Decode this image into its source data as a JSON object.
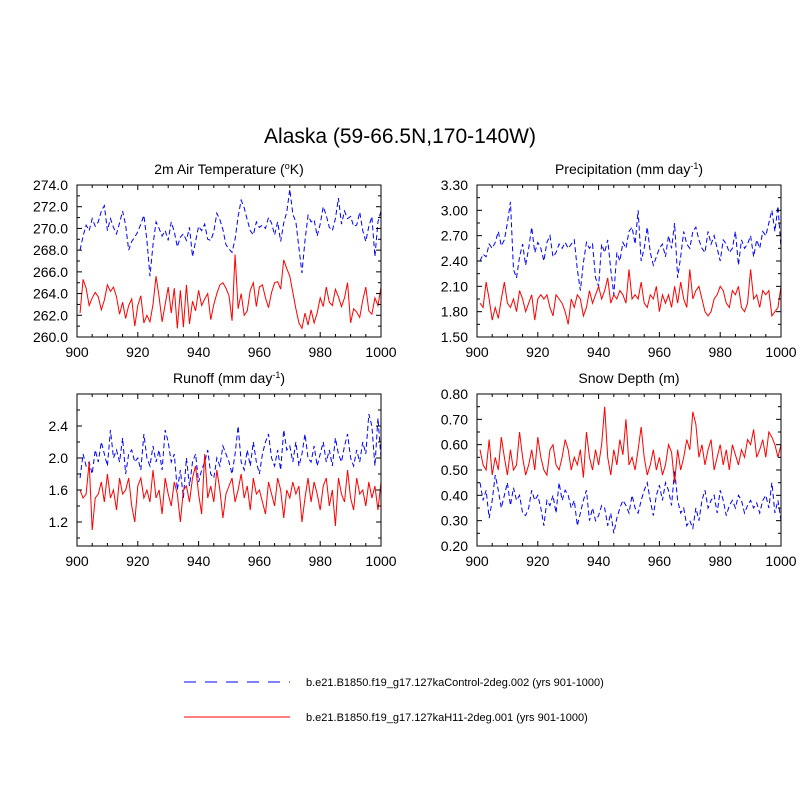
{
  "figure": {
    "title": "Alaska (59-66.5N,170-140W)"
  },
  "legend": {
    "entries": [
      {
        "label": "b.e21.B1850.f19_g17.127kaControl-2deg.002 (yrs 901-1000)",
        "color": "#0000ff",
        "style": "dashed"
      },
      {
        "label": "b.e21.B1850.f19_g17.127kaH11-2deg.001 (yrs 901-1000)",
        "color": "#ff0000",
        "style": "solid"
      }
    ]
  },
  "chart_data": [
    {
      "type": "line",
      "title": "2m Air Temperature (",
      "title_sup": "o",
      "title_suffix": "K)",
      "xlim": [
        900,
        1000
      ],
      "ylim": [
        260,
        274
      ],
      "xticks": [
        900,
        920,
        940,
        960,
        980,
        1000
      ],
      "yticks": [
        260,
        262,
        264,
        266,
        268,
        270,
        272,
        274
      ],
      "ytick_labels": [
        "260.0",
        "262.0",
        "264.0",
        "266.0",
        "268.0",
        "270.0",
        "272.0",
        "274.0"
      ],
      "x_start": 901,
      "series": [
        {
          "name": "control",
          "color": "#0000ff",
          "style": "dashed",
          "values": [
            268.0,
            269.3,
            270.3,
            269.8,
            270.9,
            270.2,
            270.6,
            271.6,
            272.1,
            269.8,
            270.9,
            270.1,
            269.5,
            270.5,
            271.6,
            270.3,
            268.0,
            268.8,
            269.2,
            269.7,
            270.4,
            271.2,
            268.9,
            265.6,
            268.5,
            270.6,
            270.0,
            269.3,
            269.8,
            268.9,
            270.6,
            269.7,
            268.3,
            269.2,
            269.5,
            268.9,
            270.1,
            267.4,
            268.8,
            270.2,
            269.8,
            270.4,
            269.0,
            268.9,
            269.7,
            271.4,
            270.8,
            269.9,
            268.5,
            268.1,
            267.8,
            269.0,
            271.1,
            272.6,
            271.9,
            270.8,
            269.8,
            269.4,
            270.6,
            270.1,
            270.3,
            270.0,
            271.0,
            270.5,
            269.4,
            270.6,
            268.8,
            270.5,
            271.5,
            273.6,
            271.3,
            270.6,
            268.2,
            265.9,
            268.9,
            271.2,
            270.6,
            270.8,
            269.3,
            270.4,
            272.0,
            271.2,
            270.1,
            269.8,
            270.9,
            272.8,
            270.4,
            271.6,
            270.9,
            271.1,
            270.2,
            270.3,
            271.5,
            269.8,
            268.8,
            270.2,
            271.1,
            267.4,
            270.6,
            271.6,
            271.9
          ]
        },
        {
          "name": "H11",
          "color": "#ff0000",
          "style": "solid",
          "values": [
            262.2,
            265.3,
            264.5,
            262.9,
            263.6,
            264.1,
            263.7,
            262.5,
            263.4,
            264.8,
            264.2,
            264.6,
            263.7,
            262.1,
            263.2,
            261.7,
            262.9,
            263.5,
            261.0,
            262.9,
            263.8,
            261.3,
            262.0,
            261.4,
            263.0,
            265.6,
            263.7,
            261.4,
            263.0,
            264.6,
            262.2,
            264.5,
            260.8,
            264.3,
            260.9,
            264.8,
            261.2,
            263.3,
            262.4,
            264.3,
            262.9,
            263.5,
            264.0,
            261.6,
            263.0,
            264.0,
            264.8,
            265.0,
            264.5,
            263.8,
            261.5,
            267.6,
            262.6,
            264.0,
            262.0,
            262.4,
            264.3,
            265.0,
            262.8,
            264.6,
            264.8,
            263.6,
            262.7,
            264.1,
            265.0,
            265.1,
            264.4,
            267.1,
            266.3,
            265.6,
            264.1,
            262.6,
            261.3,
            260.8,
            262.2,
            261.1,
            262.5,
            261.3,
            262.2,
            263.6,
            262.8,
            264.6,
            263.2,
            262.9,
            264.4,
            263.7,
            262.8,
            263.6,
            265.0,
            261.3,
            262.6,
            262.3,
            261.8,
            263.4,
            264.6,
            262.4,
            262.1,
            263.6,
            262.9,
            264.6,
            264.1
          ]
        }
      ]
    },
    {
      "type": "line",
      "title": "Precipitation (mm day",
      "title_sup": "-1",
      "title_suffix": ")",
      "xlim": [
        900,
        1000
      ],
      "ylim": [
        1.5,
        3.3
      ],
      "xticks": [
        900,
        920,
        940,
        960,
        980,
        1000
      ],
      "yticks": [
        1.5,
        1.8,
        2.1,
        2.4,
        2.7,
        3.0,
        3.3
      ],
      "ytick_labels": [
        "1.50",
        "1.80",
        "2.10",
        "2.40",
        "2.70",
        "3.00",
        "3.30"
      ],
      "x_start": 901,
      "series": [
        {
          "name": "control",
          "color": "#0000ff",
          "style": "dashed",
          "values": [
            2.4,
            2.48,
            2.45,
            2.6,
            2.55,
            2.62,
            2.75,
            2.58,
            2.65,
            2.85,
            3.1,
            2.3,
            2.2,
            2.45,
            2.6,
            2.35,
            2.55,
            2.8,
            2.5,
            2.62,
            2.55,
            2.4,
            2.62,
            2.7,
            2.45,
            2.5,
            2.6,
            2.55,
            2.62,
            2.55,
            2.6,
            2.65,
            2.3,
            2.05,
            2.38,
            2.62,
            2.55,
            2.6,
            2.2,
            2.1,
            2.6,
            2.5,
            2.65,
            2.3,
            2.0,
            2.5,
            2.4,
            2.62,
            2.55,
            2.75,
            2.8,
            2.6,
            3.0,
            2.4,
            2.55,
            2.8,
            2.5,
            2.35,
            2.45,
            2.55,
            2.6,
            2.45,
            2.7,
            2.55,
            2.85,
            2.2,
            2.45,
            2.75,
            2.6,
            2.55,
            2.75,
            2.8,
            2.65,
            2.55,
            2.5,
            2.75,
            2.6,
            2.7,
            2.55,
            2.4,
            2.65,
            2.6,
            2.5,
            2.55,
            2.75,
            2.35,
            2.65,
            2.55,
            2.6,
            2.7,
            2.45,
            2.65,
            2.55,
            2.75,
            2.7,
            2.85,
            3.0,
            2.75,
            3.05,
            2.55,
            2.4
          ]
        },
        {
          "name": "H11",
          "color": "#ff0000",
          "style": "solid",
          "values": [
            1.9,
            1.85,
            2.15,
            1.95,
            1.7,
            1.85,
            1.72,
            1.95,
            2.15,
            1.9,
            1.85,
            1.95,
            1.8,
            2.05,
            1.95,
            1.8,
            1.9,
            2.0,
            1.7,
            1.95,
            2.0,
            1.95,
            2.0,
            1.85,
            1.75,
            2.0,
            1.95,
            1.9,
            1.8,
            1.65,
            1.95,
            1.85,
            2.0,
            1.95,
            1.75,
            1.85,
            2.05,
            1.9,
            2.0,
            2.1,
            1.95,
            2.05,
            2.2,
            1.9,
            2.0,
            1.95,
            2.05,
            2.0,
            1.9,
            2.3,
            1.95,
            2.0,
            1.95,
            2.15,
            1.9,
            1.85,
            2.0,
            1.95,
            2.1,
            1.8,
            2.0,
            1.9,
            2.0,
            1.85,
            2.1,
            1.9,
            2.15,
            1.95,
            1.85,
            2.3,
            1.95,
            2.05,
            2.1,
            1.95,
            1.8,
            1.75,
            1.8,
            1.95,
            2.0,
            2.1,
            2.05,
            1.9,
            1.85,
            2.05,
            2.0,
            2.1,
            1.85,
            1.8,
            1.9,
            2.3,
            1.95,
            2.0,
            1.85,
            2.05,
            2.0,
            2.05,
            1.75,
            1.8,
            1.85,
            2.1,
            1.8
          ]
        }
      ]
    },
    {
      "type": "line",
      "title": "Runoff (mm day",
      "title_sup": "-1",
      "title_suffix": ")",
      "xlim": [
        900,
        1000
      ],
      "ylim": [
        0.9,
        2.8
      ],
      "xticks": [
        900,
        920,
        940,
        960,
        980,
        1000
      ],
      "yticks": [
        1.2,
        1.6,
        2.0,
        2.4
      ],
      "ytick_labels": [
        "1.2",
        "1.6",
        "2.0",
        "2.4"
      ],
      "x_start": 901,
      "series": [
        {
          "name": "control",
          "color": "#0000ff",
          "style": "dashed",
          "values": [
            1.75,
            2.05,
            1.9,
            1.95,
            1.8,
            2.1,
            1.95,
            2.2,
            2.05,
            1.9,
            2.35,
            2.0,
            2.1,
            1.95,
            2.25,
            1.8,
            2.05,
            2.1,
            1.95,
            2.0,
            1.85,
            2.3,
            2.0,
            1.9,
            2.15,
            1.95,
            2.1,
            1.85,
            2.35,
            2.2,
            1.95,
            2.05,
            1.6,
            1.85,
            1.5,
            2.0,
            1.65,
            1.95,
            2.05,
            1.7,
            1.85,
            1.95,
            2.1,
            1.8,
            1.75,
            2.0,
            1.9,
            2.15,
            2.05,
            1.95,
            1.8,
            2.05,
            2.4,
            1.95,
            1.85,
            2.1,
            1.9,
            2.2,
            1.95,
            1.8,
            2.05,
            2.2,
            2.3,
            2.0,
            1.9,
            2.1,
            1.85,
            2.35,
            2.1,
            2.15,
            1.95,
            2.2,
            1.9,
            2.05,
            2.3,
            2.0,
            1.95,
            2.15,
            1.9,
            2.05,
            2.2,
            1.95,
            2.1,
            1.9,
            2.25,
            2.05,
            1.95,
            2.15,
            2.3,
            2.0,
            1.9,
            2.1,
            1.95,
            2.2,
            2.05,
            2.55,
            2.4,
            1.9,
            2.5,
            2.0,
            1.85
          ]
        },
        {
          "name": "H11",
          "color": "#ff0000",
          "style": "solid",
          "values": [
            1.6,
            1.5,
            1.55,
            1.95,
            1.1,
            1.5,
            1.55,
            1.7,
            1.45,
            1.8,
            1.5,
            1.6,
            1.35,
            1.75,
            1.55,
            1.6,
            1.75,
            1.4,
            1.2,
            1.65,
            1.75,
            1.5,
            1.6,
            1.45,
            1.85,
            1.5,
            1.6,
            1.3,
            1.75,
            1.55,
            1.4,
            1.7,
            1.55,
            1.2,
            1.6,
            1.65,
            1.45,
            1.75,
            1.9,
            1.55,
            1.3,
            2.05,
            1.5,
            1.65,
            1.45,
            1.85,
            1.6,
            1.25,
            1.55,
            1.65,
            1.75,
            1.45,
            1.6,
            1.8,
            1.5,
            1.65,
            1.35,
            1.75,
            1.55,
            1.6,
            1.45,
            1.3,
            1.7,
            1.55,
            1.4,
            1.75,
            1.6,
            1.25,
            1.6,
            1.5,
            1.7,
            1.55,
            1.65,
            1.2,
            1.5,
            1.75,
            1.45,
            1.7,
            1.55,
            1.35,
            1.65,
            1.75,
            1.4,
            1.6,
            1.15,
            1.75,
            1.55,
            1.45,
            1.85,
            1.5,
            1.35,
            1.75,
            1.55,
            1.6,
            1.4,
            1.7,
            1.5,
            1.65,
            1.35,
            1.7,
            1.55
          ]
        }
      ]
    },
    {
      "type": "line",
      "title": "Snow Depth (m)",
      "title_sup": "",
      "title_suffix": "",
      "xlim": [
        900,
        1000
      ],
      "ylim": [
        0.2,
        0.8
      ],
      "xticks": [
        900,
        920,
        940,
        960,
        980,
        1000
      ],
      "yticks": [
        0.2,
        0.3,
        0.4,
        0.5,
        0.6,
        0.7,
        0.8
      ],
      "ytick_labels": [
        "0.20",
        "0.30",
        "0.40",
        "0.50",
        "0.60",
        "0.70",
        "0.80"
      ],
      "x_start": 901,
      "series": [
        {
          "name": "control",
          "color": "#0000ff",
          "style": "dashed",
          "values": [
            0.45,
            0.38,
            0.42,
            0.31,
            0.38,
            0.48,
            0.42,
            0.35,
            0.4,
            0.45,
            0.36,
            0.43,
            0.38,
            0.4,
            0.33,
            0.32,
            0.35,
            0.42,
            0.38,
            0.4,
            0.35,
            0.28,
            0.38,
            0.36,
            0.4,
            0.33,
            0.45,
            0.38,
            0.42,
            0.4,
            0.35,
            0.38,
            0.28,
            0.33,
            0.38,
            0.42,
            0.3,
            0.35,
            0.3,
            0.32,
            0.36,
            0.35,
            0.28,
            0.33,
            0.25,
            0.31,
            0.35,
            0.38,
            0.36,
            0.33,
            0.4,
            0.35,
            0.33,
            0.38,
            0.42,
            0.45,
            0.38,
            0.32,
            0.4,
            0.44,
            0.38,
            0.45,
            0.42,
            0.36,
            0.5,
            0.38,
            0.33,
            0.35,
            0.28,
            0.3,
            0.27,
            0.35,
            0.3,
            0.38,
            0.42,
            0.35,
            0.38,
            0.4,
            0.33,
            0.42,
            0.38,
            0.32,
            0.36,
            0.38,
            0.35,
            0.4,
            0.38,
            0.33,
            0.36,
            0.38,
            0.35,
            0.37,
            0.33,
            0.38,
            0.4,
            0.35,
            0.45,
            0.33,
            0.38,
            0.3,
            0.36
          ]
        },
        {
          "name": "H11",
          "color": "#ff0000",
          "style": "solid",
          "values": [
            0.58,
            0.52,
            0.5,
            0.62,
            0.48,
            0.55,
            0.5,
            0.63,
            0.55,
            0.48,
            0.58,
            0.5,
            0.52,
            0.65,
            0.55,
            0.48,
            0.52,
            0.58,
            0.5,
            0.63,
            0.55,
            0.5,
            0.48,
            0.58,
            0.6,
            0.52,
            0.5,
            0.55,
            0.62,
            0.58,
            0.5,
            0.55,
            0.52,
            0.58,
            0.47,
            0.65,
            0.55,
            0.5,
            0.58,
            0.52,
            0.6,
            0.75,
            0.55,
            0.48,
            0.58,
            0.52,
            0.62,
            0.56,
            0.7,
            0.52,
            0.55,
            0.5,
            0.58,
            0.67,
            0.55,
            0.48,
            0.52,
            0.58,
            0.5,
            0.55,
            0.48,
            0.52,
            0.6,
            0.57,
            0.45,
            0.58,
            0.5,
            0.55,
            0.62,
            0.58,
            0.73,
            0.68,
            0.55,
            0.6,
            0.52,
            0.58,
            0.62,
            0.5,
            0.55,
            0.6,
            0.52,
            0.58,
            0.5,
            0.6,
            0.56,
            0.52,
            0.58,
            0.55,
            0.62,
            0.6,
            0.66,
            0.55,
            0.58,
            0.62,
            0.55,
            0.65,
            0.63,
            0.6,
            0.55,
            0.6,
            0.5
          ]
        }
      ]
    }
  ]
}
